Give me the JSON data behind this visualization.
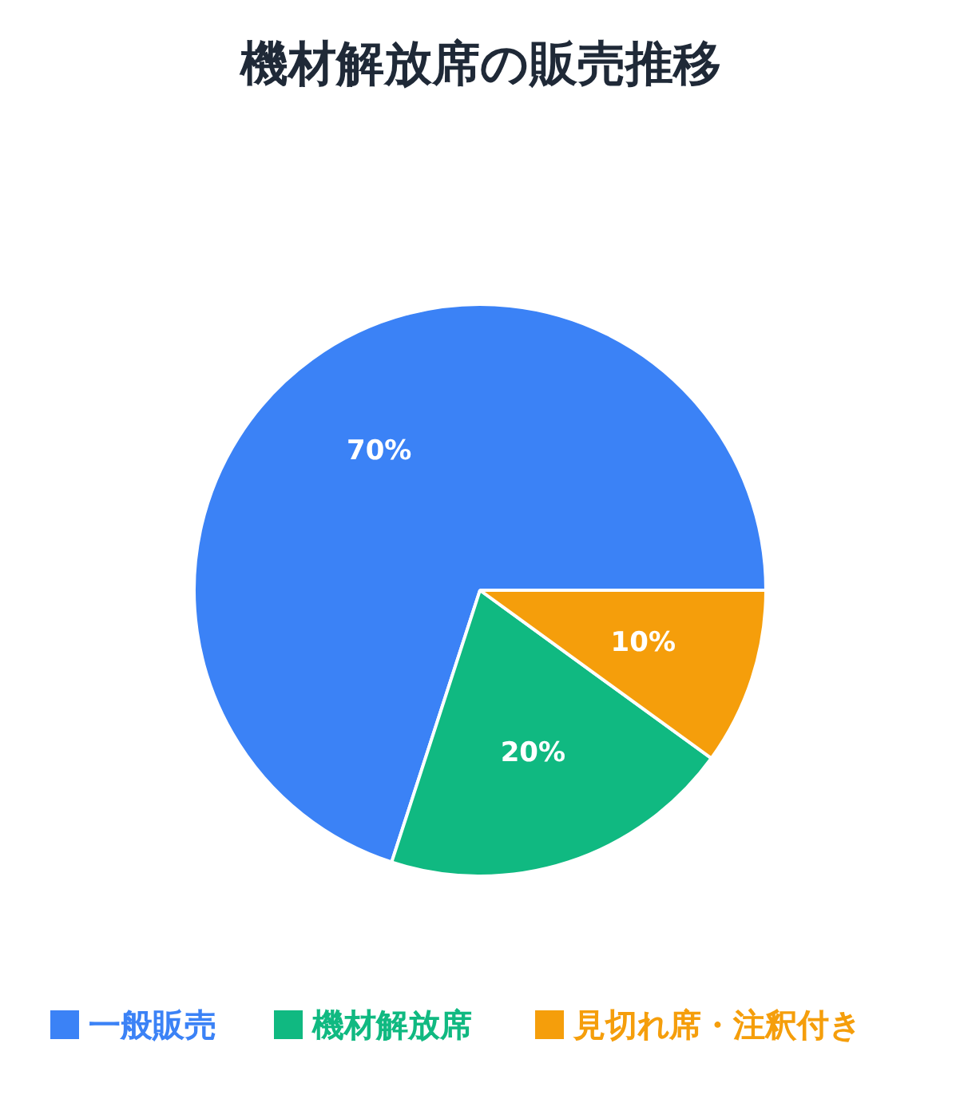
{
  "chart_data": {
    "type": "pie",
    "title": "機材解放席の販売推移",
    "categories": [
      "一般販売",
      "機材解放席",
      "見切れ席・注釈付き"
    ],
    "values": [
      70,
      20,
      10
    ],
    "colors": [
      "#3b82f6",
      "#10b981",
      "#f59e0b"
    ],
    "value_labels": [
      "70%",
      "20%",
      "10%"
    ],
    "legend": "bottom"
  }
}
